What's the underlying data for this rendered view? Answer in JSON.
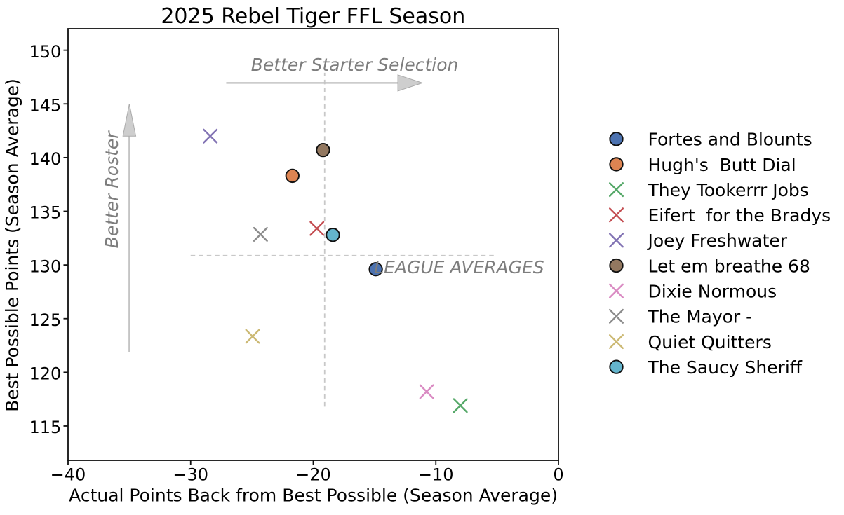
{
  "figure": {
    "background": "#ffffff"
  },
  "chart_data": {
    "type": "scatter",
    "title": "2025 Rebel Tiger FFL Season",
    "xlabel": "Actual Points Back from Best Possible (Season Average)",
    "ylabel": "Best Possible Points (Season Average)",
    "xlim": [
      -40,
      0
    ],
    "ylim": [
      111.8,
      152.0
    ],
    "xticks": [
      -40,
      -30,
      -20,
      -10,
      0
    ],
    "yticks": [
      115,
      120,
      125,
      130,
      135,
      140,
      145,
      150
    ],
    "grid": false,
    "legend_position": "right outside",
    "series": [
      {
        "name": "Fortes and Blounts",
        "marker": "circle",
        "color": "#4C72B0",
        "x": -14.9,
        "y": 129.6
      },
      {
        "name": "Hugh's  Butt Dial",
        "marker": "circle",
        "color": "#DD8452",
        "x": -21.7,
        "y": 138.3
      },
      {
        "name": "They Tookerrr Jobs",
        "marker": "x",
        "color": "#55A868",
        "x": -8.0,
        "y": 116.9
      },
      {
        "name": "Eifert  for the Bradys",
        "marker": "x",
        "color": "#C44E52",
        "x": -19.7,
        "y": 133.4
      },
      {
        "name": "Joey Freshwater",
        "marker": "x",
        "color": "#8172B3",
        "x": -28.4,
        "y": 142.0
      },
      {
        "name": "Let em breathe 68",
        "marker": "circle",
        "color": "#937860",
        "x": -19.2,
        "y": 140.7
      },
      {
        "name": "Dixie Normous",
        "marker": "x",
        "color": "#DA8BC3",
        "x": -10.75,
        "y": 118.2
      },
      {
        "name": "The Mayor -",
        "marker": "x",
        "color": "#8C8C8C",
        "x": -24.3,
        "y": 132.85
      },
      {
        "name": "Quiet Quitters",
        "marker": "x",
        "color": "#CCB974",
        "x": -24.95,
        "y": 123.35
      },
      {
        "name": "The Saucy Sheriff",
        "marker": "circle",
        "color": "#64B5CD",
        "x": -18.4,
        "y": 132.8
      }
    ],
    "average_lines": {
      "label": "LEAGUE AVERAGES",
      "label_at": [
        -15.04,
        129.22
      ],
      "vertical": {
        "x": -19.07,
        "y_from": 116.8,
        "y_to": 147.9
      },
      "horizontal": {
        "y": 130.87,
        "x_from": -30.0,
        "x_to": -5.1
      },
      "color": "#c8c8c8"
    },
    "annotations": [
      {
        "text": "Better Starter Selection",
        "text_at": [
          -16.62,
          148.1
        ],
        "rotation": 0,
        "arrow_from": [
          -27.1,
          146.95
        ],
        "arrow_to": [
          -11.1,
          146.95
        ],
        "head_length": 2.0,
        "head_width": 1.5
      },
      {
        "text": "Better Roster",
        "text_at": [
          -35.94,
          137.0
        ],
        "rotation": -90,
        "arrow_from": [
          -35.0,
          121.9
        ],
        "arrow_to": [
          -35.0,
          145.0
        ],
        "head_length": 3.0,
        "head_width": 1.05
      }
    ],
    "annotation_color": "#7d7d7d",
    "arrow_color": "#c4c4c4",
    "marker_edge_color": "#111111"
  }
}
